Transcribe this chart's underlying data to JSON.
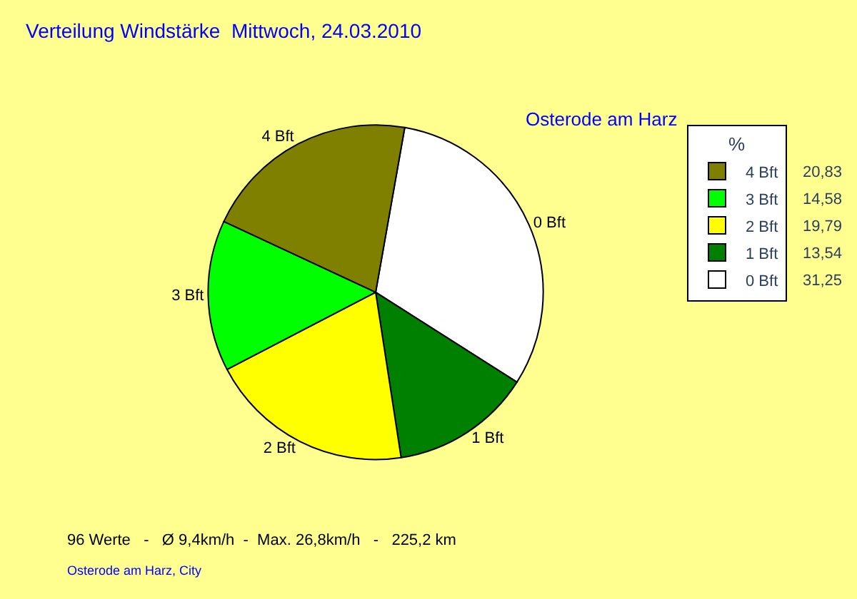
{
  "chart_data": {
    "type": "pie",
    "title": "Verteilung Windstärke  Mittwoch, 24.03.2010",
    "subtitle": "Osterode am Harz",
    "legend_title": "%",
    "categories": [
      "0 Bft",
      "1 Bft",
      "2 Bft",
      "3 Bft",
      "4 Bft"
    ],
    "values": [
      31.25,
      13.54,
      19.79,
      14.58,
      20.83
    ],
    "value_labels": [
      "31,25",
      "13,54",
      "19,79",
      "14,58",
      "20,83"
    ],
    "colors": [
      "#ffffff",
      "#008000",
      "#ffff00",
      "#00ff00",
      "#808000"
    ],
    "legend": "top right",
    "annotations": [
      "96 Werte   -   Ø 9,4km/h  -  Max. 26,8km/h   -   225,2 km",
      "Osterode am Harz, City"
    ]
  }
}
